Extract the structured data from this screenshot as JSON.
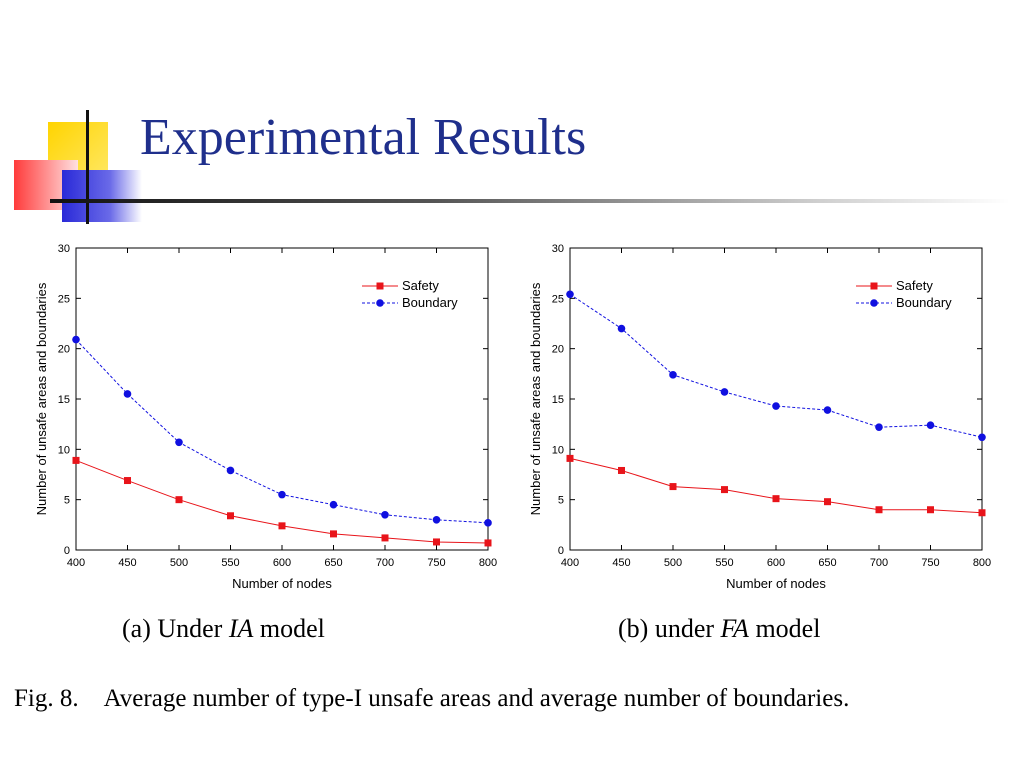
{
  "slide": {
    "title": "Experimental Results",
    "caption_a": {
      "prefix": "(a) Under ",
      "model": "IA",
      "suffix": " model"
    },
    "caption_b": {
      "prefix": "(b) under ",
      "model": "FA",
      "suffix": " model"
    },
    "figure_caption": "Fig. 8.    Average number of type-I unsafe areas and average number of boundaries."
  },
  "colors": {
    "title": "#1f2f8c",
    "safety": "#e8141a",
    "boundary": "#1010e0"
  },
  "chart_data": [
    {
      "type": "line",
      "title": "",
      "xlabel": "Number of nodes",
      "ylabel": "Number of unsafe areas and boundaries",
      "xlim": [
        400,
        800
      ],
      "ylim": [
        0,
        30
      ],
      "xticks": [
        400,
        450,
        500,
        550,
        600,
        650,
        700,
        750,
        800
      ],
      "yticks": [
        0,
        5,
        10,
        15,
        20,
        25,
        30
      ],
      "legend": "top-right",
      "grid": false,
      "x": [
        400,
        450,
        500,
        550,
        600,
        650,
        700,
        750,
        800
      ],
      "series": [
        {
          "name": "Safety",
          "marker": "square",
          "style": "solid",
          "values": [
            8.9,
            6.9,
            5.0,
            3.4,
            2.4,
            1.6,
            1.2,
            0.8,
            0.7
          ]
        },
        {
          "name": "Boundary",
          "marker": "circle",
          "style": "dashed",
          "values": [
            20.9,
            15.5,
            10.7,
            7.9,
            5.5,
            4.5,
            3.5,
            3.0,
            2.7
          ]
        }
      ]
    },
    {
      "type": "line",
      "title": "",
      "xlabel": "Number of nodes",
      "ylabel": "Number of unsafe areas and boundaries",
      "xlim": [
        400,
        800
      ],
      "ylim": [
        0,
        30
      ],
      "xticks": [
        400,
        450,
        500,
        550,
        600,
        650,
        700,
        750,
        800
      ],
      "yticks": [
        0,
        5,
        10,
        15,
        20,
        25,
        30
      ],
      "legend": "top-right",
      "grid": false,
      "x": [
        400,
        450,
        500,
        550,
        600,
        650,
        700,
        750,
        800
      ],
      "series": [
        {
          "name": "Safety",
          "marker": "square",
          "style": "solid",
          "values": [
            9.1,
            7.9,
            6.3,
            6.0,
            5.1,
            4.8,
            4.0,
            4.0,
            3.7
          ]
        },
        {
          "name": "Boundary",
          "marker": "circle",
          "style": "dashed",
          "values": [
            25.4,
            22.0,
            17.4,
            15.7,
            14.3,
            13.9,
            12.2,
            12.4,
            11.2
          ]
        }
      ]
    }
  ]
}
